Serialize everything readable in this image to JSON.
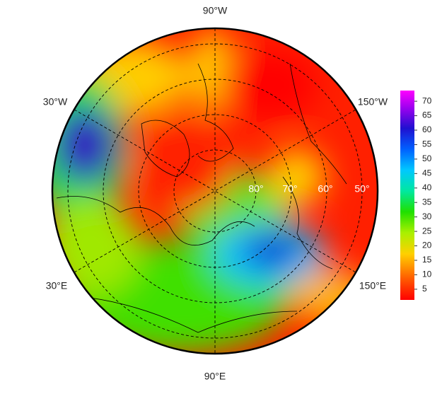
{
  "map": {
    "longitude_labels": {
      "top": "90°W",
      "upper_left": "30°W",
      "upper_right": "150°W",
      "lower_left": "30°E",
      "lower_right": "150°E",
      "bottom": "90°E"
    },
    "latitude_labels": [
      "80°",
      "70°",
      "60°",
      "50°"
    ]
  },
  "colorbar": {
    "lim": [
      1.3,
      73.7
    ],
    "ticks": [
      5,
      10,
      15,
      20,
      25,
      30,
      35,
      40,
      45,
      50,
      55,
      60,
      65,
      70
    ]
  }
}
